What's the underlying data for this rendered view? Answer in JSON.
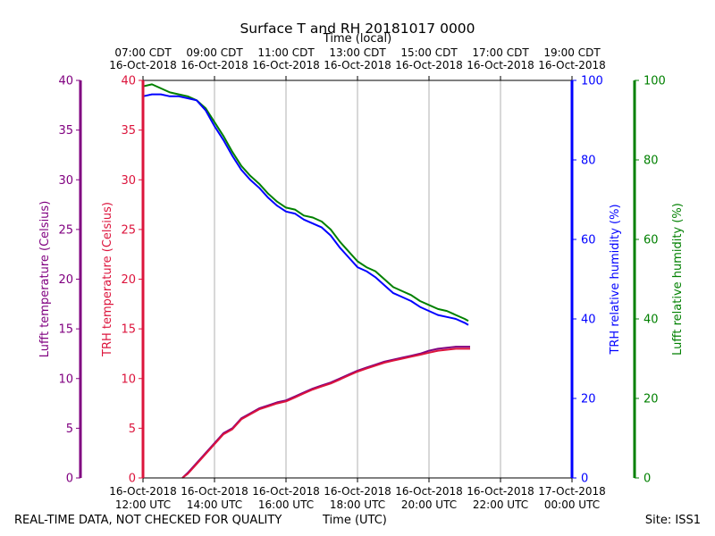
{
  "chart_data": {
    "type": "line",
    "title": "Surface T and RH 20181017 0000",
    "xlabel_top": "Time (local)",
    "xlabel_bottom": "Time (UTC)",
    "x_ticks_bottom": [
      {
        "x": 12,
        "date": "16-Oct-2018",
        "time": "12:00 UTC"
      },
      {
        "x": 14,
        "date": "16-Oct-2018",
        "time": "14:00 UTC"
      },
      {
        "x": 16,
        "date": "16-Oct-2018",
        "time": "16:00 UTC"
      },
      {
        "x": 18,
        "date": "16-Oct-2018",
        "time": "18:00 UTC"
      },
      {
        "x": 20,
        "date": "16-Oct-2018",
        "time": "20:00 UTC"
      },
      {
        "x": 22,
        "date": "16-Oct-2018",
        "time": "22:00 UTC"
      },
      {
        "x": 24,
        "date": "17-Oct-2018",
        "time": "00:00 UTC"
      }
    ],
    "x_ticks_top": [
      {
        "x": 12,
        "time": "07:00 CDT",
        "date": "16-Oct-2018"
      },
      {
        "x": 14,
        "time": "09:00 CDT",
        "date": "16-Oct-2018"
      },
      {
        "x": 16,
        "time": "11:00 CDT",
        "date": "16-Oct-2018"
      },
      {
        "x": 18,
        "time": "13:00 CDT",
        "date": "16-Oct-2018"
      },
      {
        "x": 20,
        "time": "15:00 CDT",
        "date": "16-Oct-2018"
      },
      {
        "x": 22,
        "time": "17:00 CDT",
        "date": "16-Oct-2018"
      },
      {
        "x": 24,
        "time": "19:00 CDT",
        "date": "16-Oct-2018"
      }
    ],
    "xlim": [
      12,
      24
    ],
    "x_unit": "hours UTC on 16-Oct-2018",
    "grid": "vertical",
    "axes": {
      "lufft_temp": {
        "label": "Lufft temperature (Celsius)",
        "ylim": [
          0,
          40
        ],
        "ticks": [
          0,
          5,
          10,
          15,
          20,
          25,
          30,
          35,
          40
        ],
        "color": "#800080"
      },
      "trh_temp": {
        "label": "TRH temperature (Celsius)",
        "ylim": [
          0,
          40
        ],
        "ticks": [
          0,
          5,
          10,
          15,
          20,
          25,
          30,
          35,
          40
        ],
        "color": "#dc143c"
      },
      "trh_rh": {
        "label": "TRH relative humidity (%)",
        "ylim": [
          0,
          100
        ],
        "ticks": [
          0,
          20,
          40,
          60,
          80,
          100
        ],
        "color": "#0000ff"
      },
      "lufft_rh": {
        "label": "Lufft relative humidity (%)",
        "ylim": [
          0,
          100
        ],
        "ticks": [
          0,
          20,
          40,
          60,
          80,
          100
        ],
        "color": "#008000"
      }
    },
    "series": [
      {
        "axis": "lufft_rh",
        "color": "#008000",
        "x": [
          12.0,
          12.25,
          12.5,
          12.75,
          13.0,
          13.25,
          13.5,
          13.75,
          14.0,
          14.25,
          14.5,
          14.75,
          15.0,
          15.25,
          15.5,
          15.75,
          16.0,
          16.25,
          16.5,
          16.75,
          17.0,
          17.25,
          17.5,
          17.75,
          18.0,
          18.25,
          18.5,
          18.75,
          19.0,
          19.25,
          19.5,
          19.75,
          20.0,
          20.25,
          20.5,
          20.75,
          21.0,
          21.1
        ],
        "y": [
          98.5,
          99.0,
          98.0,
          97.0,
          96.5,
          96.0,
          95.0,
          93.0,
          89.5,
          86.0,
          82.0,
          78.5,
          76.0,
          74.0,
          71.5,
          69.5,
          68.0,
          67.5,
          66.0,
          65.5,
          64.5,
          62.5,
          59.5,
          57.0,
          54.5,
          53.0,
          52.0,
          50.0,
          48.0,
          47.0,
          46.0,
          44.5,
          43.5,
          42.5,
          42.0,
          41.0,
          40.0,
          39.5
        ]
      },
      {
        "axis": "trh_rh",
        "color": "#0000ff",
        "x": [
          12.0,
          12.25,
          12.5,
          12.75,
          13.0,
          13.25,
          13.5,
          13.75,
          14.0,
          14.25,
          14.5,
          14.75,
          15.0,
          15.25,
          15.5,
          15.75,
          16.0,
          16.25,
          16.5,
          16.75,
          17.0,
          17.25,
          17.5,
          17.75,
          18.0,
          18.25,
          18.5,
          18.75,
          19.0,
          19.25,
          19.5,
          19.75,
          20.0,
          20.25,
          20.5,
          20.75,
          21.0,
          21.1
        ],
        "y": [
          96.0,
          96.5,
          96.5,
          96.0,
          96.0,
          95.5,
          95.0,
          92.5,
          88.5,
          85.0,
          81.0,
          77.5,
          75.0,
          73.0,
          70.5,
          68.5,
          67.0,
          66.5,
          65.0,
          64.0,
          63.0,
          61.0,
          58.0,
          55.5,
          53.0,
          52.0,
          50.5,
          48.5,
          46.5,
          45.5,
          44.5,
          43.0,
          42.0,
          41.0,
          40.5,
          40.0,
          39.0,
          38.5
        ]
      },
      {
        "axis": "lufft_temp",
        "color": "#800080",
        "x": [
          13.1,
          13.25,
          13.5,
          13.75,
          14.0,
          14.25,
          14.5,
          14.75,
          15.0,
          15.25,
          15.5,
          15.75,
          16.0,
          16.25,
          16.5,
          16.75,
          17.0,
          17.25,
          17.5,
          17.75,
          18.0,
          18.25,
          18.5,
          18.75,
          19.0,
          19.25,
          19.5,
          19.75,
          20.0,
          20.25,
          20.5,
          20.75,
          21.0,
          21.15
        ],
        "y": [
          0.0,
          0.5,
          1.5,
          2.5,
          3.5,
          4.5,
          5.0,
          6.0,
          6.5,
          7.0,
          7.3,
          7.6,
          7.8,
          8.2,
          8.6,
          9.0,
          9.3,
          9.6,
          10.0,
          10.4,
          10.8,
          11.1,
          11.4,
          11.7,
          11.9,
          12.1,
          12.3,
          12.5,
          12.8,
          13.0,
          13.1,
          13.2,
          13.2,
          13.2
        ]
      },
      {
        "axis": "trh_temp",
        "color": "#dc143c",
        "x": [
          13.1,
          13.25,
          13.5,
          13.75,
          14.0,
          14.25,
          14.5,
          14.75,
          15.0,
          15.25,
          15.5,
          15.75,
          16.0,
          16.25,
          16.5,
          16.75,
          17.0,
          17.25,
          17.5,
          17.75,
          18.0,
          18.25,
          18.5,
          18.75,
          19.0,
          19.25,
          19.5,
          19.75,
          20.0,
          20.25,
          20.5,
          20.75,
          21.0,
          21.15
        ],
        "y": [
          0.0,
          0.4,
          1.4,
          2.4,
          3.4,
          4.4,
          4.9,
          5.9,
          6.4,
          6.9,
          7.2,
          7.5,
          7.7,
          8.1,
          8.5,
          8.9,
          9.2,
          9.5,
          9.9,
          10.3,
          10.7,
          11.0,
          11.3,
          11.6,
          11.8,
          12.0,
          12.2,
          12.4,
          12.6,
          12.8,
          12.9,
          13.0,
          13.0,
          13.0
        ]
      }
    ]
  },
  "footer": {
    "left": "REAL-TIME DATA, NOT CHECKED FOR QUALITY",
    "center": "Time (UTC)",
    "right": "Site: ISS1"
  }
}
